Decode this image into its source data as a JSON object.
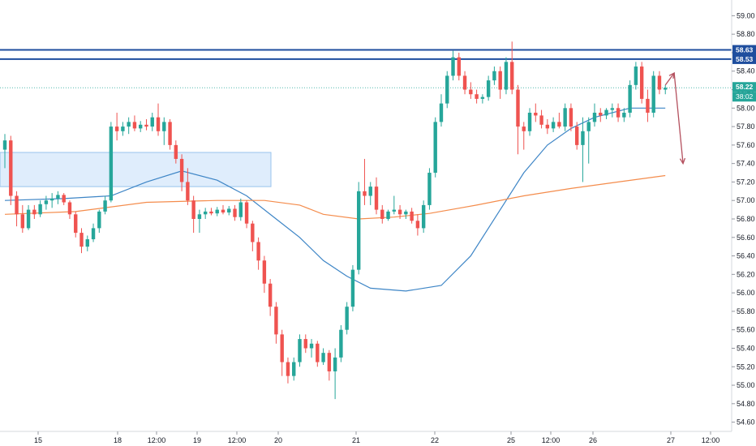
{
  "chart_data": {
    "type": "candlestick",
    "x_ticks": [
      "15",
      "18",
      "12:00",
      "19",
      "12:00",
      "20",
      "21",
      "22",
      "25",
      "12:00",
      "26",
      "27",
      "12:00"
    ],
    "y_ticks": [
      "59.00",
      "58.80",
      "58.60",
      "58.40",
      "58.20",
      "58.00",
      "57.80",
      "57.60",
      "57.40",
      "57.20",
      "57.00",
      "56.80",
      "56.60",
      "56.40",
      "56.20",
      "56.00",
      "55.80",
      "55.60",
      "55.40",
      "55.20",
      "55.00",
      "54.80",
      "54.60"
    ],
    "ylim": [
      54.5,
      59.1
    ],
    "grid": false,
    "resistance_levels": [
      {
        "value": 58.63,
        "label": "58.63"
      },
      {
        "value": 58.53,
        "label": "58.53"
      }
    ],
    "current_price": {
      "value": 58.22,
      "label": "58.22",
      "countdown": "38:02"
    },
    "demand_zone": {
      "from": 57.15,
      "to": 57.52
    },
    "candles": [
      [
        57.55,
        57.72,
        57.35,
        57.65
      ],
      [
        57.65,
        57.7,
        56.95,
        57.05
      ],
      [
        57.05,
        57.1,
        56.72,
        56.85
      ],
      [
        56.85,
        56.95,
        56.65,
        56.7
      ],
      [
        56.7,
        56.95,
        56.68,
        56.9
      ],
      [
        56.9,
        56.95,
        56.8,
        56.85
      ],
      [
        56.85,
        57.0,
        56.82,
        56.96
      ],
      [
        56.96,
        57.05,
        56.9,
        57.0
      ],
      [
        57.0,
        57.08,
        56.92,
        57.02
      ],
      [
        57.02,
        57.1,
        56.96,
        57.06
      ],
      [
        57.06,
        57.08,
        56.95,
        56.98
      ],
      [
        56.98,
        57.0,
        56.8,
        56.85
      ],
      [
        56.85,
        56.88,
        56.6,
        56.65
      ],
      [
        56.65,
        56.7,
        56.43,
        56.5
      ],
      [
        56.5,
        56.62,
        56.45,
        56.58
      ],
      [
        56.58,
        56.75,
        56.55,
        56.7
      ],
      [
        56.7,
        56.9,
        56.65,
        56.88
      ],
      [
        56.88,
        57.05,
        56.85,
        57.0
      ],
      [
        57.0,
        57.85,
        56.98,
        57.8
      ],
      [
        57.8,
        57.95,
        57.65,
        57.75
      ],
      [
        57.75,
        57.85,
        57.7,
        57.8
      ],
      [
        57.8,
        57.9,
        57.72,
        57.85
      ],
      [
        57.85,
        57.92,
        57.75,
        57.78
      ],
      [
        57.78,
        57.86,
        57.74,
        57.82
      ],
      [
        57.82,
        57.88,
        57.76,
        57.8
      ],
      [
        57.8,
        57.95,
        57.75,
        57.9
      ],
      [
        57.9,
        58.05,
        57.7,
        57.75
      ],
      [
        57.75,
        57.9,
        57.6,
        57.85
      ],
      [
        57.85,
        57.88,
        57.55,
        57.6
      ],
      [
        57.6,
        57.65,
        57.4,
        57.45
      ],
      [
        57.45,
        57.5,
        57.1,
        57.2
      ],
      [
        57.2,
        57.35,
        56.95,
        57.0
      ],
      [
        57.0,
        57.05,
        56.65,
        56.8
      ],
      [
        56.8,
        56.9,
        56.65,
        56.85
      ],
      [
        56.85,
        56.92,
        56.8,
        56.88
      ],
      [
        56.88,
        56.92,
        56.84,
        56.86
      ],
      [
        56.86,
        56.93,
        56.83,
        56.9
      ],
      [
        56.9,
        56.95,
        56.85,
        56.87
      ],
      [
        56.87,
        56.94,
        56.84,
        56.91
      ],
      [
        56.91,
        56.95,
        56.78,
        56.82
      ],
      [
        56.82,
        57.02,
        56.78,
        56.98
      ],
      [
        56.98,
        57.0,
        56.7,
        56.75
      ],
      [
        56.75,
        56.78,
        56.45,
        56.55
      ],
      [
        56.55,
        56.6,
        56.25,
        56.35
      ],
      [
        56.35,
        56.4,
        56.0,
        56.1
      ],
      [
        56.1,
        56.15,
        55.75,
        55.85
      ],
      [
        55.85,
        55.9,
        55.45,
        55.55
      ],
      [
        55.55,
        55.6,
        55.1,
        55.25
      ],
      [
        55.25,
        55.3,
        55.02,
        55.1
      ],
      [
        55.1,
        55.3,
        55.05,
        55.25
      ],
      [
        55.25,
        55.55,
        55.2,
        55.5
      ],
      [
        55.5,
        55.55,
        55.35,
        55.4
      ],
      [
        55.4,
        55.5,
        55.3,
        55.45
      ],
      [
        55.45,
        55.48,
        55.2,
        55.25
      ],
      [
        55.25,
        55.4,
        55.22,
        55.35
      ],
      [
        55.35,
        55.38,
        55.05,
        55.15
      ],
      [
        55.15,
        55.4,
        54.85,
        55.3
      ],
      [
        55.3,
        55.65,
        55.25,
        55.6
      ],
      [
        55.6,
        55.9,
        55.55,
        55.85
      ],
      [
        55.85,
        56.3,
        55.8,
        56.25
      ],
      [
        56.25,
        57.2,
        56.2,
        57.1
      ],
      [
        57.1,
        57.45,
        56.95,
        57.05
      ],
      [
        57.05,
        57.2,
        56.95,
        57.15
      ],
      [
        57.15,
        57.25,
        56.85,
        56.9
      ],
      [
        56.9,
        56.95,
        56.75,
        56.8
      ],
      [
        56.8,
        56.9,
        56.78,
        56.88
      ],
      [
        56.88,
        57.05,
        56.85,
        56.9
      ],
      [
        56.9,
        56.95,
        56.8,
        56.85
      ],
      [
        56.85,
        56.9,
        56.8,
        56.88
      ],
      [
        56.88,
        56.92,
        56.75,
        56.78
      ],
      [
        56.78,
        56.85,
        56.62,
        56.7
      ],
      [
        56.7,
        57.0,
        56.65,
        56.95
      ],
      [
        56.95,
        57.35,
        56.9,
        57.3
      ],
      [
        57.3,
        57.9,
        57.25,
        57.85
      ],
      [
        57.85,
        58.15,
        57.8,
        58.05
      ],
      [
        58.05,
        58.4,
        58.0,
        58.35
      ],
      [
        58.35,
        58.62,
        58.3,
        58.55
      ],
      [
        58.55,
        58.6,
        58.3,
        58.35
      ],
      [
        58.35,
        58.4,
        58.15,
        58.2
      ],
      [
        58.2,
        58.28,
        58.1,
        58.15
      ],
      [
        58.15,
        58.2,
        58.05,
        58.1
      ],
      [
        58.1,
        58.15,
        58.05,
        58.12
      ],
      [
        58.12,
        58.35,
        58.08,
        58.3
      ],
      [
        58.3,
        58.45,
        58.25,
        58.4
      ],
      [
        58.4,
        58.45,
        58.1,
        58.2
      ],
      [
        58.2,
        58.55,
        58.15,
        58.5
      ],
      [
        58.5,
        58.72,
        58.15,
        58.2
      ],
      [
        58.2,
        58.25,
        57.5,
        57.8
      ],
      [
        57.8,
        57.85,
        57.55,
        57.75
      ],
      [
        57.75,
        58.0,
        57.7,
        57.95
      ],
      [
        57.95,
        58.05,
        57.85,
        57.92
      ],
      [
        57.92,
        57.98,
        57.78,
        57.82
      ],
      [
        57.82,
        57.88,
        57.72,
        57.78
      ],
      [
        57.78,
        57.9,
        57.74,
        57.85
      ],
      [
        57.85,
        57.95,
        57.78,
        57.8
      ],
      [
        57.8,
        58.05,
        57.75,
        58.0
      ],
      [
        58.0,
        58.05,
        57.75,
        57.8
      ],
      [
        57.8,
        57.85,
        57.55,
        57.6
      ],
      [
        57.6,
        57.9,
        57.2,
        57.75
      ],
      [
        57.75,
        57.9,
        57.4,
        57.85
      ],
      [
        57.85,
        58.05,
        57.8,
        57.95
      ],
      [
        57.95,
        58.0,
        57.85,
        57.92
      ],
      [
        57.92,
        58.0,
        57.88,
        57.98
      ],
      [
        57.98,
        58.05,
        57.9,
        58.0
      ],
      [
        58.0,
        58.05,
        57.85,
        57.9
      ],
      [
        57.9,
        58.0,
        57.85,
        57.95
      ],
      [
        57.95,
        58.3,
        57.9,
        58.25
      ],
      [
        58.25,
        58.5,
        58.2,
        58.45
      ],
      [
        58.45,
        58.5,
        58.05,
        58.1
      ],
      [
        58.1,
        58.2,
        57.85,
        57.95
      ],
      [
        57.95,
        58.4,
        57.9,
        58.35
      ],
      [
        58.35,
        58.4,
        58.15,
        58.2
      ],
      [
        58.2,
        58.25,
        58.15,
        58.22
      ]
    ],
    "series": [
      {
        "kind": "moving_average",
        "color": "#3d85c6",
        "x": [
          0,
          10,
          18,
          24,
          30,
          36,
          41,
          46,
          50,
          54,
          58,
          62,
          68,
          74,
          79,
          84,
          88,
          92,
          96,
          100,
          106,
          112
        ],
        "y": [
          57.0,
          57.02,
          57.05,
          57.2,
          57.32,
          57.22,
          57.05,
          56.8,
          56.6,
          56.35,
          56.18,
          56.05,
          56.02,
          56.08,
          56.4,
          56.9,
          57.3,
          57.6,
          57.78,
          57.9,
          58.0,
          58.0
        ]
      },
      {
        "kind": "moving_average",
        "color": "#f48c4c",
        "x": [
          0,
          12,
          24,
          36,
          44,
          50,
          54,
          60,
          66,
          72,
          80,
          88,
          96,
          104,
          112
        ],
        "y": [
          56.85,
          56.88,
          56.98,
          57.0,
          57.0,
          56.95,
          56.85,
          56.8,
          56.82,
          56.86,
          56.95,
          57.05,
          57.13,
          57.2,
          57.27
        ]
      }
    ],
    "annotations": [
      {
        "type": "arrow",
        "from": [
          112,
          58.25
        ],
        "to": [
          113.5,
          58.38
        ]
      },
      {
        "type": "arrow",
        "from": [
          113.5,
          58.38
        ],
        "to": [
          115,
          57.4
        ]
      }
    ],
    "colors": {
      "up": "#26a69a",
      "down": "#ef5350",
      "resistance": "#1f4e9e",
      "price_line": "#26a69a",
      "arrow": "#b4505e",
      "zone_fill": "#d9eafb",
      "zone_border": "#98c3ec"
    }
  }
}
